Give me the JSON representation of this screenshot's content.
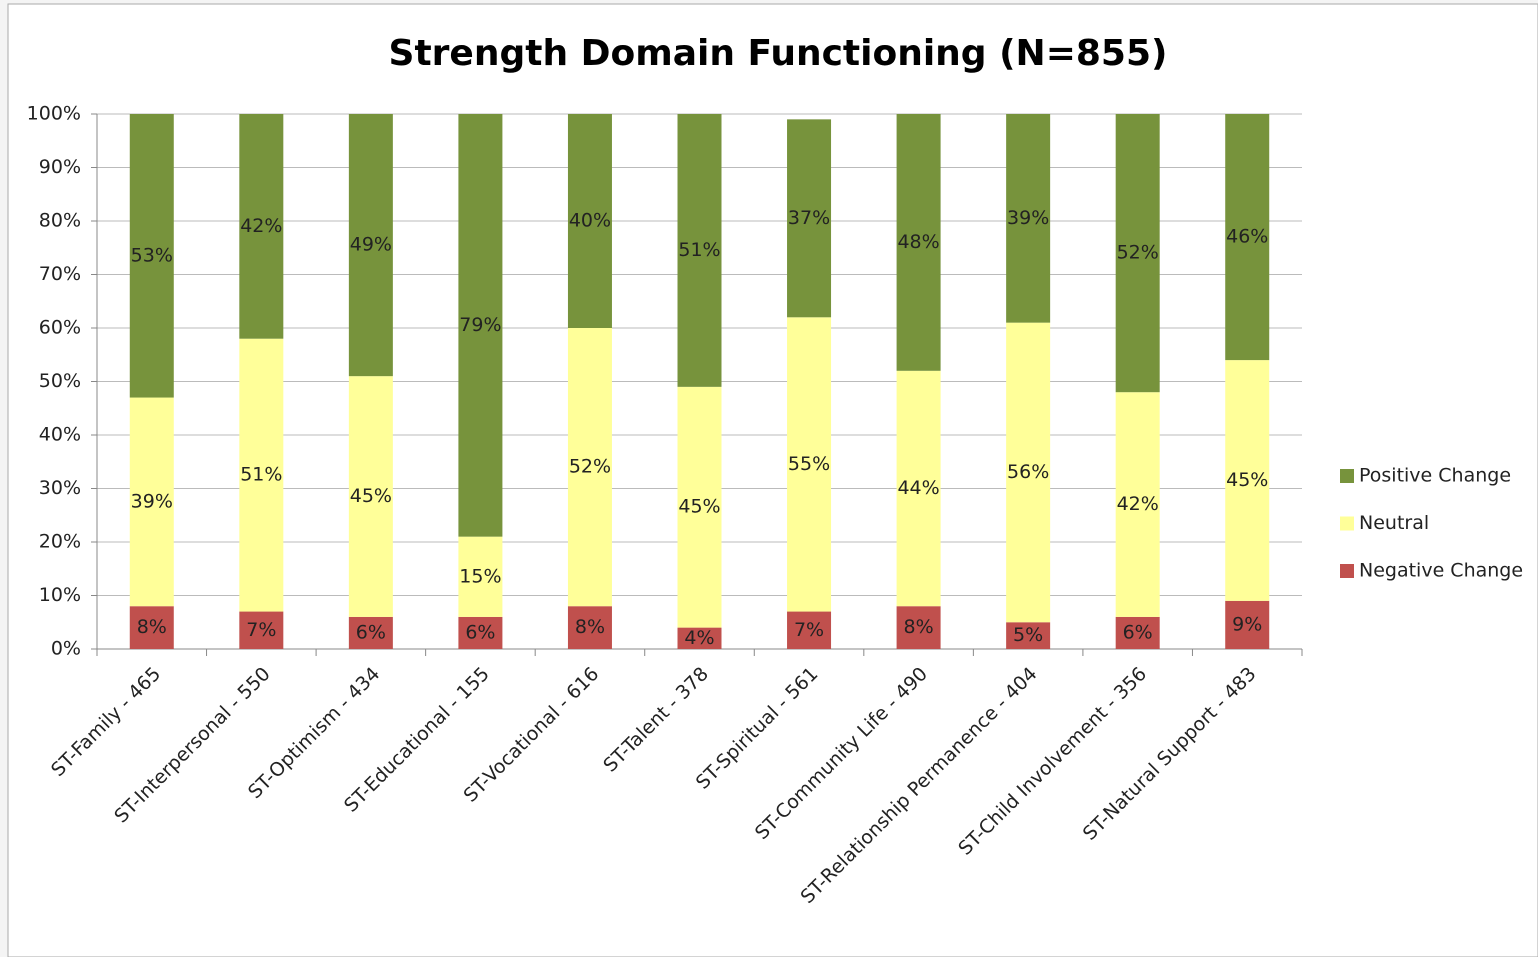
{
  "chart_data": {
    "type": "stacked_bar",
    "title": "Strength Domain Functioning (N=855)",
    "categories": [
      "ST-Family - 465",
      "ST-Interpersonal - 550",
      "ST-Optimism - 434",
      "ST-Educational - 155",
      "ST-Vocational - 616",
      "ST-Talent - 378",
      "ST-Spiritual - 561",
      "ST-Community Life - 490",
      "ST-Relationship Permanence - 404",
      "ST-Child Involvement - 356",
      "ST-Natural Support - 483"
    ],
    "series": [
      {
        "name": "Negative Change",
        "color": "#c0504d",
        "values": [
          8,
          7,
          6,
          6,
          8,
          4,
          7,
          8,
          5,
          6,
          9
        ],
        "value_labels": [
          "8%",
          "7%",
          "6%",
          "6%",
          "8%",
          "4%",
          "7%",
          "8%",
          "5%",
          "6%",
          "9%"
        ]
      },
      {
        "name": "Neutral",
        "color": "#ffff99",
        "values": [
          39,
          51,
          45,
          15,
          52,
          45,
          55,
          44,
          56,
          42,
          45
        ],
        "value_labels": [
          "39%",
          "51%",
          "45%",
          "15%",
          "52%",
          "45%",
          "55%",
          "44%",
          "56%",
          "42%",
          "45%"
        ]
      },
      {
        "name": "Positive Change",
        "color": "#77933c",
        "values": [
          53,
          42,
          49,
          79,
          40,
          51,
          37,
          48,
          39,
          52,
          46
        ],
        "value_labels": [
          "53%",
          "42%",
          "49%",
          "79%",
          "40%",
          "51%",
          "37%",
          "48%",
          "39%",
          "52%",
          "46%"
        ]
      }
    ],
    "ylim": [
      0,
      100
    ],
    "yticks": [
      {
        "value": 0,
        "label": "0%"
      },
      {
        "value": 10,
        "label": "10%"
      },
      {
        "value": 20,
        "label": "20%"
      },
      {
        "value": 30,
        "label": "30%"
      },
      {
        "value": 40,
        "label": "40%"
      },
      {
        "value": 50,
        "label": "50%"
      },
      {
        "value": 60,
        "label": "60%"
      },
      {
        "value": 70,
        "label": "70%"
      },
      {
        "value": 80,
        "label": "80%"
      },
      {
        "value": 90,
        "label": "90%"
      },
      {
        "value": 100,
        "label": "100%"
      }
    ],
    "grid": true,
    "legend": "right"
  }
}
